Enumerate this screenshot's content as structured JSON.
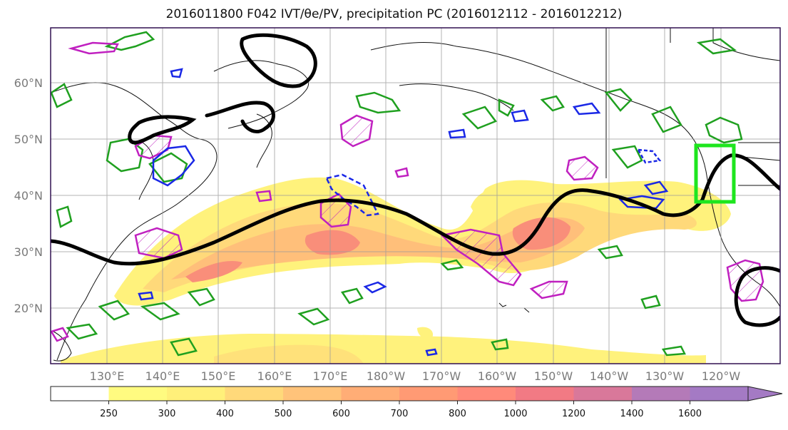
{
  "title": "2016011800 F042 IVT/θe/PV, precipitation PC (2016012112 - 2016012212)",
  "lat_labels": [
    "60°N",
    "50°N",
    "40°N",
    "30°N",
    "20°N"
  ],
  "lon_labels": [
    "130°E",
    "140°E",
    "150°E",
    "160°E",
    "170°E",
    "180°W",
    "170°W",
    "160°W",
    "150°W",
    "140°W",
    "130°W",
    "120°W"
  ],
  "colorbar": {
    "ticks": [
      "250",
      "300",
      "400",
      "500",
      "600",
      "700",
      "800",
      "1000",
      "1200",
      "1400",
      "1600"
    ],
    "colors": [
      "#ffffff",
      "#fffb80",
      "#fff07a",
      "#ffd97a",
      "#ffc37a",
      "#ffad76",
      "#ff9a74",
      "#ff8a7a",
      "#f27a84",
      "#d9789a",
      "#b47ab8",
      "#a47ac4"
    ],
    "extend": "max"
  },
  "colors": {
    "ivt_shading": "#ffd97a",
    "theta_e_contour": "#000000",
    "pv_positive": "#1fa01f",
    "pv_negative": "#c020c0",
    "pv_blue": "#1a28e6",
    "highlight_box": "#1ee61e",
    "frame": "#301050"
  }
}
